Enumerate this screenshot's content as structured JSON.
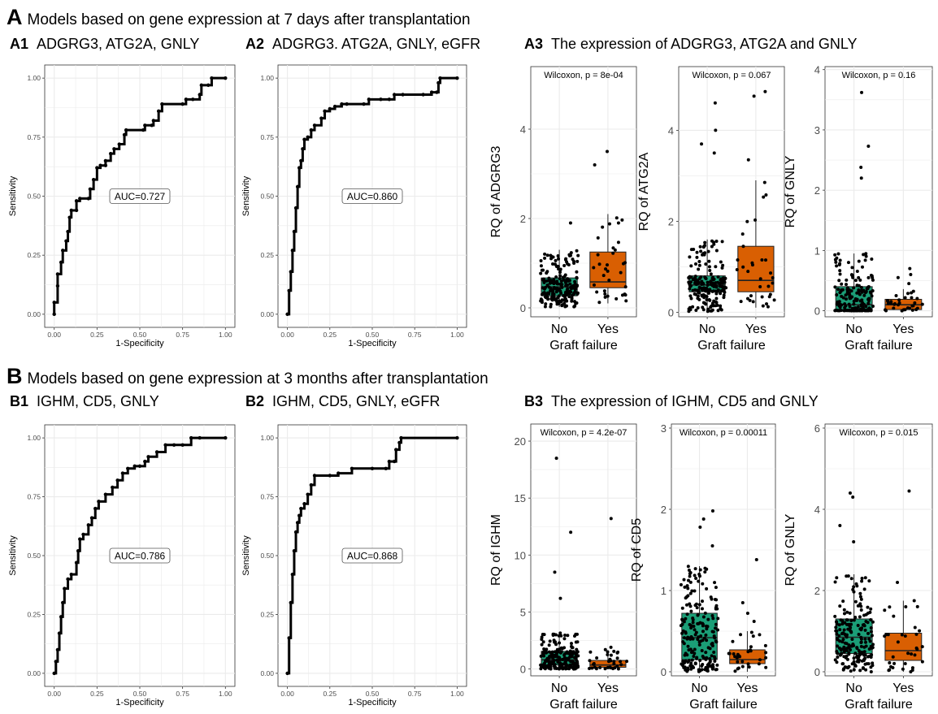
{
  "sections": [
    {
      "letter": "A",
      "title": "Models based on gene expression at 7 days after transplantation"
    },
    {
      "letter": "B",
      "title": "Models based on gene expression at 3 months after transplantation"
    }
  ],
  "panels": {
    "A1": {
      "label": "A1",
      "title": "ADGRG3, ATG2A, GNLY"
    },
    "A2": {
      "label": "A2",
      "title": "ADGRG3. ATG2A, GNLY, eGFR"
    },
    "A3": {
      "label": "A3",
      "title": "The expression of ADGRG3, ATG2A and GNLY"
    },
    "B1": {
      "label": "B1",
      "title": "IGHM, CD5, GNLY"
    },
    "B2": {
      "label": "B2",
      "title": "IGHM, CD5, GNLY, eGFR"
    },
    "B3": {
      "label": "B3",
      "title": "The expression of IGHM, CD5 and GNLY"
    }
  },
  "colors": {
    "no_group": "#1b9e77",
    "yes_group": "#d95f02",
    "grid": "#ebebeb",
    "curve": "#000000"
  },
  "chart_data": [
    {
      "id": "A1",
      "type": "line",
      "xlabel": "1-Specificity",
      "ylabel": "Sensitivity",
      "annotation": "AUC=0.727",
      "xlim": [
        0,
        1
      ],
      "ylim": [
        0,
        1
      ],
      "xticks": [
        "0.00",
        "0.25",
        "0.50",
        "0.75",
        "1.00"
      ],
      "yticks": [
        "0.00",
        "0.25",
        "0.50",
        "0.75",
        "1.00"
      ],
      "x": [
        0,
        0,
        0.02,
        0.02,
        0.04,
        0.05,
        0.07,
        0.08,
        0.09,
        0.1,
        0.13,
        0.13,
        0.15,
        0.2,
        0.21,
        0.23,
        0.25,
        0.27,
        0.3,
        0.3,
        0.33,
        0.35,
        0.38,
        0.41,
        0.42,
        0.52,
        0.53,
        0.57,
        0.58,
        0.61,
        0.63,
        0.75,
        0.77,
        0.81,
        0.85,
        0.86,
        0.9,
        0.92,
        1.0
      ],
      "y": [
        0,
        0.05,
        0.12,
        0.17,
        0.22,
        0.27,
        0.31,
        0.35,
        0.41,
        0.44,
        0.44,
        0.48,
        0.49,
        0.49,
        0.53,
        0.57,
        0.62,
        0.63,
        0.63,
        0.65,
        0.68,
        0.7,
        0.72,
        0.76,
        0.78,
        0.78,
        0.8,
        0.8,
        0.82,
        0.86,
        0.89,
        0.89,
        0.91,
        0.91,
        0.93,
        0.97,
        0.97,
        1.0,
        1.0
      ]
    },
    {
      "id": "A2",
      "type": "line",
      "xlabel": "1-Specificity",
      "ylabel": "Sensitivity",
      "annotation": "AUC=0.860",
      "xlim": [
        0,
        1
      ],
      "ylim": [
        0,
        1
      ],
      "xticks": [
        "0.00",
        "0.25",
        "0.50",
        "0.75",
        "1.00"
      ],
      "yticks": [
        "0.00",
        "0.25",
        "0.50",
        "0.75",
        "1.00"
      ],
      "x": [
        0,
        0.01,
        0.02,
        0.03,
        0.04,
        0.05,
        0.06,
        0.07,
        0.08,
        0.09,
        0.1,
        0.12,
        0.14,
        0.16,
        0.2,
        0.22,
        0.25,
        0.28,
        0.32,
        0.35,
        0.45,
        0.48,
        0.55,
        0.6,
        0.63,
        0.68,
        0.8,
        0.85,
        0.88,
        0.89,
        0.9,
        1.0
      ],
      "y": [
        0,
        0.1,
        0.18,
        0.27,
        0.35,
        0.45,
        0.54,
        0.62,
        0.65,
        0.7,
        0.74,
        0.75,
        0.78,
        0.8,
        0.83,
        0.86,
        0.87,
        0.88,
        0.89,
        0.89,
        0.89,
        0.91,
        0.91,
        0.91,
        0.93,
        0.93,
        0.93,
        0.94,
        0.94,
        0.98,
        1.0,
        1.0
      ]
    },
    {
      "id": "A3-ADGRG3",
      "type": "box",
      "categories": [
        "No",
        "Yes"
      ],
      "xlabel": "Graft failure",
      "ylabel": "RQ of ADGRG3",
      "annotation": "Wilcoxon, p = 8e-04",
      "ylim": [
        -0.2,
        5.4
      ],
      "yticks": [
        0,
        2,
        4
      ],
      "boxes": [
        {
          "min": 0.02,
          "q1": 0.27,
          "median": 0.47,
          "q3": 0.67,
          "max": 1.3
        },
        {
          "min": 0.1,
          "q1": 0.45,
          "median": 0.58,
          "q3": 1.25,
          "max": 2.1
        }
      ],
      "points": [
        [
          0.7,
          0.3,
          1.9,
          0.25
        ],
        [
          0.9,
          3.5,
          0.82,
          3.2
        ]
      ]
    },
    {
      "id": "A3-ATG2A",
      "type": "box",
      "categories": [
        "No",
        "Yes"
      ],
      "xlabel": "Graft failure",
      "ylabel": "RQ of ATG2A",
      "annotation": "Wilcoxon, p = 0.067",
      "ylim": [
        -0.1,
        5.4
      ],
      "yticks": [
        0,
        2,
        4
      ],
      "boxes": [
        {
          "min": 0.02,
          "q1": 0.45,
          "median": 0.6,
          "q3": 0.8,
          "max": 1.6
        },
        {
          "min": 0.1,
          "q1": 0.45,
          "median": 0.7,
          "q3": 1.45,
          "max": 2.9
        }
      ],
      "points": [
        [
          4.6,
          3.7,
          4.0,
          3.5
        ],
        [
          4.85,
          4.75,
          3.35,
          0.3
        ]
      ]
    },
    {
      "id": "A3-GNLY",
      "type": "box",
      "categories": [
        "No",
        "Yes"
      ],
      "xlabel": "Graft failure",
      "ylabel": "RQ of GNLY",
      "annotation": "Wilcoxon, p = 0.16",
      "ylim": [
        -0.1,
        4.05
      ],
      "yticks": [
        0,
        1,
        2,
        3,
        4
      ],
      "boxes": [
        {
          "min": 0.0,
          "q1": 0.01,
          "median": 0.1,
          "q3": 0.4,
          "max": 0.95
        },
        {
          "min": 0.0,
          "q1": 0.02,
          "median": 0.1,
          "q3": 0.19,
          "max": 0.36
        }
      ],
      "points": [
        [
          3.62,
          2.73,
          2.38,
          2.2
        ],
        [
          0.7,
          0.6,
          0.55,
          0.45
        ]
      ]
    },
    {
      "id": "B1",
      "type": "line",
      "xlabel": "1-Specificity",
      "ylabel": "Sensitivity",
      "annotation": "AUC=0.786",
      "xlim": [
        0,
        1
      ],
      "ylim": [
        0,
        1
      ],
      "xticks": [
        "0.00",
        "0.25",
        "0.50",
        "0.75",
        "1.00"
      ],
      "yticks": [
        "0.00",
        "0.25",
        "0.50",
        "0.75",
        "1.00"
      ],
      "x": [
        0,
        0.01,
        0.02,
        0.03,
        0.04,
        0.05,
        0.06,
        0.08,
        0.1,
        0.13,
        0.14,
        0.15,
        0.17,
        0.2,
        0.22,
        0.24,
        0.26,
        0.3,
        0.34,
        0.37,
        0.4,
        0.43,
        0.47,
        0.5,
        0.53,
        0.55,
        0.6,
        0.65,
        0.7,
        0.75,
        0.8,
        0.85,
        1.0
      ],
      "y": [
        0,
        0.05,
        0.1,
        0.17,
        0.24,
        0.3,
        0.36,
        0.4,
        0.42,
        0.47,
        0.52,
        0.57,
        0.59,
        0.63,
        0.66,
        0.7,
        0.73,
        0.76,
        0.79,
        0.82,
        0.85,
        0.87,
        0.88,
        0.88,
        0.9,
        0.92,
        0.94,
        0.97,
        0.97,
        0.97,
        1.0,
        1.0,
        1.0
      ]
    },
    {
      "id": "B2",
      "type": "line",
      "xlabel": "1-Specificity",
      "ylabel": "Sensitivity",
      "annotation": "AUC=0.868",
      "xlim": [
        0,
        1
      ],
      "ylim": [
        0,
        1
      ],
      "xticks": [
        "0.00",
        "0.25",
        "0.50",
        "0.75",
        "1.00"
      ],
      "yticks": [
        "0.00",
        "0.25",
        "0.50",
        "0.75",
        "1.00"
      ],
      "x": [
        0,
        0.01,
        0.02,
        0.03,
        0.04,
        0.05,
        0.06,
        0.07,
        0.08,
        0.1,
        0.12,
        0.14,
        0.16,
        0.25,
        0.3,
        0.38,
        0.5,
        0.58,
        0.6,
        0.63,
        0.64,
        0.66,
        0.67,
        1.0
      ],
      "y": [
        0,
        0.15,
        0.3,
        0.42,
        0.52,
        0.6,
        0.64,
        0.67,
        0.7,
        0.72,
        0.76,
        0.8,
        0.84,
        0.84,
        0.85,
        0.87,
        0.87,
        0.87,
        0.9,
        0.9,
        0.95,
        0.98,
        1.0,
        1.0
      ]
    },
    {
      "id": "B3-IGHM",
      "type": "box",
      "categories": [
        "No",
        "Yes"
      ],
      "xlabel": "Graft failure",
      "ylabel": "RQ of IGHM",
      "annotation": "Wilcoxon, p = 4.2e-07",
      "ylim": [
        -0.6,
        21.5
      ],
      "yticks": [
        0,
        5,
        10,
        15,
        20
      ],
      "boxes": [
        {
          "min": 0.0,
          "q1": 0.35,
          "median": 0.8,
          "q3": 1.55,
          "max": 3.2
        },
        {
          "min": 0.0,
          "q1": 0.15,
          "median": 0.35,
          "q3": 0.75,
          "max": 1.6
        }
      ],
      "points": [
        [
          18.5,
          12.0,
          8.5,
          6.2
        ],
        [
          13.2,
          1.9,
          1.7,
          1.5
        ]
      ]
    },
    {
      "id": "B3-CD5",
      "type": "box",
      "categories": [
        "No",
        "Yes"
      ],
      "xlabel": "Graft failure",
      "ylabel": "RQ of CD5",
      "annotation": "Wilcoxon, p = 0.00011",
      "ylim": [
        -0.05,
        3.05
      ],
      "yticks": [
        0,
        1,
        2,
        3
      ],
      "boxes": [
        {
          "min": 0.0,
          "q1": 0.15,
          "median": 0.42,
          "q3": 0.72,
          "max": 1.3
        },
        {
          "min": 0.0,
          "q1": 0.1,
          "median": 0.15,
          "q3": 0.27,
          "max": 0.5
        }
      ],
      "points": [
        [
          1.98,
          1.88,
          1.78,
          1.55
        ],
        [
          1.38,
          0.85,
          0.72,
          0.62
        ]
      ]
    },
    {
      "id": "B3-GNLY",
      "type": "box",
      "categories": [
        "No",
        "Yes"
      ],
      "xlabel": "Graft failure",
      "ylabel": "RQ of GNLY",
      "annotation": "Wilcoxon, p = 0.015",
      "ylim": [
        -0.1,
        6.1
      ],
      "yticks": [
        0,
        2,
        4,
        6
      ],
      "boxes": [
        {
          "min": 0.0,
          "q1": 0.45,
          "median": 0.85,
          "q3": 1.3,
          "max": 2.4
        },
        {
          "min": 0.0,
          "q1": 0.28,
          "median": 0.52,
          "q3": 0.95,
          "max": 1.75
        }
      ],
      "points": [
        [
          4.4,
          4.3,
          3.6,
          3.2
        ],
        [
          4.45,
          2.2,
          1.75,
          1.6
        ]
      ]
    }
  ]
}
